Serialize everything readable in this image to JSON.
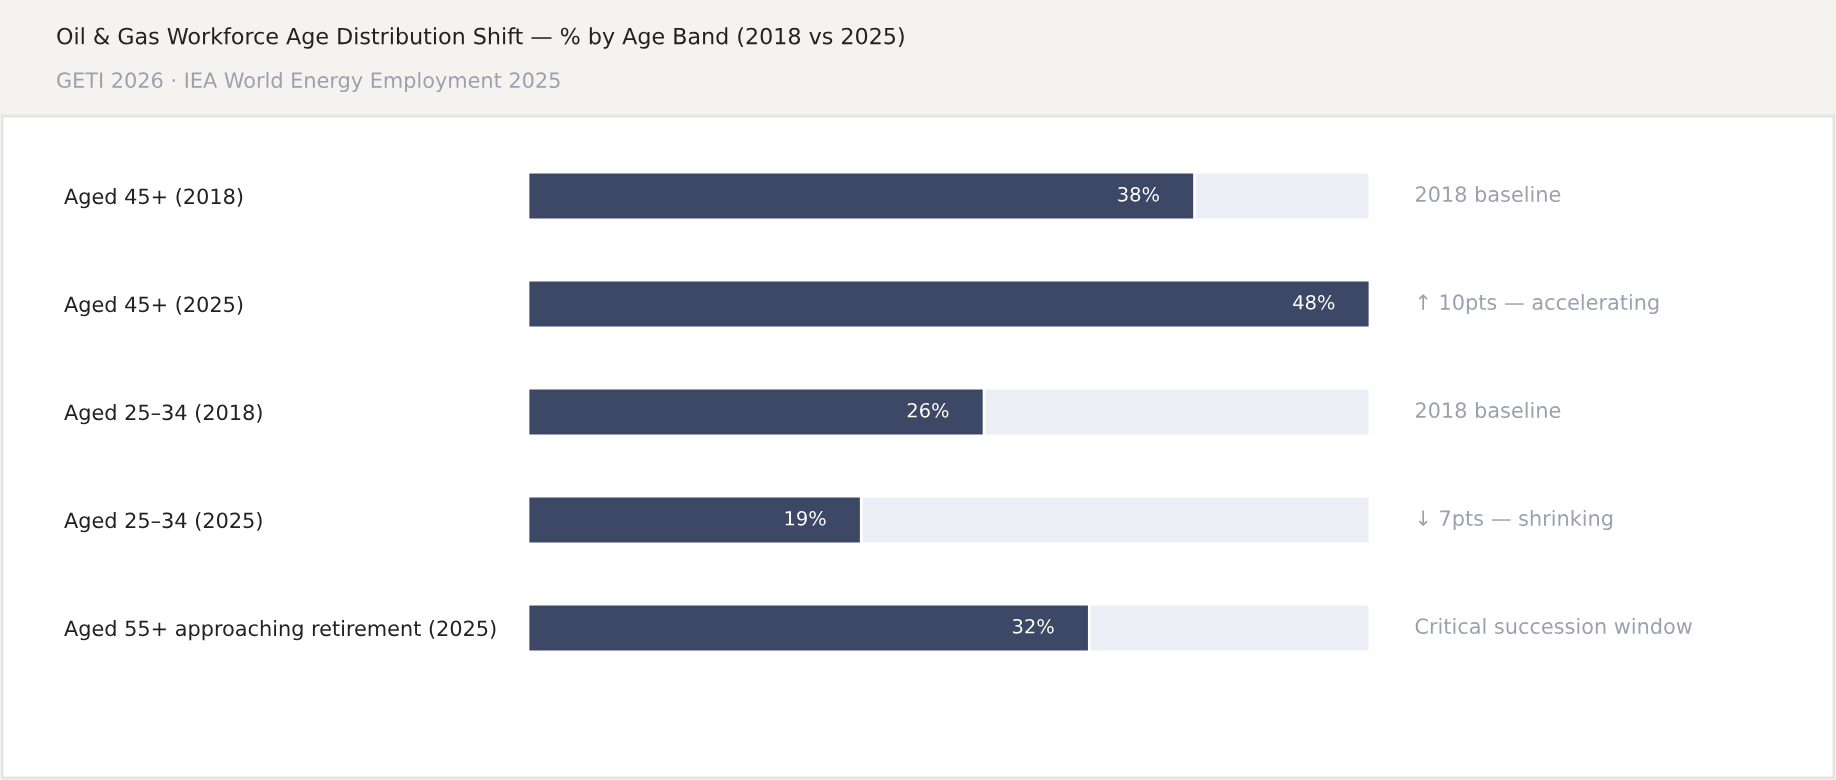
{
  "chart_data": {
    "type": "bar",
    "orientation": "horizontal",
    "title": "Oil & Gas Workforce Age Distribution Shift — % by Age Band (2018 vs 2025)",
    "subtitle": "GETI 2026 · IEA World Energy Employment 2025",
    "categories": [
      "Aged 45+ (2018)",
      "Aged 45+ (2025)",
      "Aged 25–34 (2018)",
      "Aged 25–34 (2025)",
      "Aged 55+ approaching retirement (2025)"
    ],
    "values": [
      38,
      48,
      26,
      19,
      32
    ],
    "color": "#3d4866",
    "value_labels": [
      "38%",
      "48%",
      "26%",
      "19%",
      "32%"
    ],
    "xlim": [
      0,
      48
    ],
    "tick_labels": "y",
    "grid": false,
    "legend": false,
    "annotations": [
      "2018 baseline",
      "↑ 10pts — accelerating",
      "2018 baseline",
      "↓ 7pts — shrinking",
      "Critical succession window"
    ]
  }
}
